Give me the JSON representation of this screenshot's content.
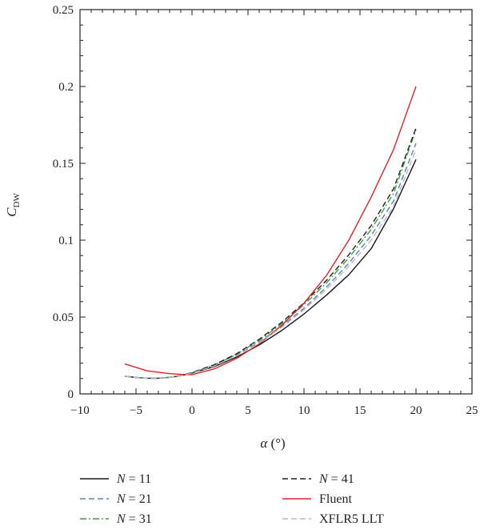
{
  "chart_data": {
    "type": "line",
    "xlabel_symbol": "α",
    "xlabel_unit": " (°)",
    "ylabel_main": "C",
    "ylabel_sub": "DW",
    "xlim": [
      -10,
      25
    ],
    "ylim": [
      0,
      0.25
    ],
    "xticks": [
      -10,
      -5,
      0,
      5,
      10,
      15,
      20,
      25
    ],
    "yticks": [
      0,
      0.05,
      0.1,
      0.15,
      0.2,
      0.25
    ],
    "ytick_labels": [
      "0",
      "0.05",
      "0.1",
      "0.15",
      "0.2",
      "0.25"
    ],
    "legend_placement": "bottom",
    "series": [
      {
        "name": "N = 11",
        "name_italic": "N",
        "name_rest": " = 11",
        "color": "#1a1a1a",
        "dash": "solid",
        "x": [
          -6,
          -5,
          -4,
          -3,
          -2,
          -1,
          0,
          2,
          4,
          6,
          8,
          10,
          12,
          14,
          16,
          18,
          20
        ],
        "y": [
          0.0115,
          0.0107,
          0.0102,
          0.0102,
          0.0108,
          0.0118,
          0.0135,
          0.0178,
          0.024,
          0.0318,
          0.0412,
          0.052,
          0.0642,
          0.0775,
          0.0945,
          0.1205,
          0.1525
        ]
      },
      {
        "name": "N = 21",
        "name_italic": "N",
        "name_rest": " = 21",
        "color": "#5b7fc4",
        "dash": "dashed",
        "x": [
          -6,
          -5,
          -4,
          -3,
          -2,
          -1,
          0,
          2,
          4,
          6,
          8,
          10,
          12,
          14,
          16,
          18,
          20
        ],
        "y": [
          0.0115,
          0.0107,
          0.0102,
          0.0102,
          0.0108,
          0.0119,
          0.0137,
          0.0185,
          0.0252,
          0.0338,
          0.044,
          0.0558,
          0.0695,
          0.085,
          0.103,
          0.1255,
          0.163
        ]
      },
      {
        "name": "N = 31",
        "name_italic": "N",
        "name_rest": " = 31",
        "color": "#3aa13a",
        "dash": "dashdot",
        "x": [
          -6,
          -5,
          -4,
          -3,
          -2,
          -1,
          0,
          2,
          4,
          6,
          8,
          10,
          12,
          14,
          16,
          18,
          20
        ],
        "y": [
          0.0115,
          0.0107,
          0.0102,
          0.0102,
          0.0108,
          0.012,
          0.0138,
          0.0188,
          0.0258,
          0.0348,
          0.0455,
          0.058,
          0.0722,
          0.0885,
          0.107,
          0.1305,
          0.172
        ]
      },
      {
        "name": "N = 41",
        "name_italic": "N",
        "name_rest": " = 41",
        "color": "#222222",
        "dash": "dashed",
        "x": [
          -6,
          -5,
          -4,
          -3,
          -2,
          -1,
          0,
          2,
          4,
          6,
          8,
          10,
          12,
          14,
          16,
          18,
          20
        ],
        "y": [
          0.0115,
          0.0107,
          0.0102,
          0.0102,
          0.0108,
          0.012,
          0.0139,
          0.019,
          0.0262,
          0.0355,
          0.0465,
          0.0592,
          0.0738,
          0.0905,
          0.1095,
          0.1335,
          0.173
        ]
      },
      {
        "name": "Fluent",
        "name_italic": "",
        "name_rest": "Fluent",
        "color": "#d9262c",
        "dash": "solid",
        "x": [
          -6,
          -4,
          -2,
          -1,
          0,
          2,
          4,
          6,
          8,
          10,
          12,
          14,
          16,
          18,
          20
        ],
        "y": [
          0.0195,
          0.015,
          0.0132,
          0.0127,
          0.0125,
          0.0163,
          0.0232,
          0.0325,
          0.0445,
          0.059,
          0.077,
          0.1,
          0.128,
          0.159,
          0.2
        ]
      },
      {
        "name": "XFLR5 LLT",
        "name_italic": "",
        "name_rest": "XFLR5 LLT",
        "color": "#b9b9c6",
        "dash": "dashed",
        "x": [
          -6,
          -5,
          -4,
          -3,
          -2,
          -1,
          0,
          2,
          4,
          6,
          8,
          10,
          12,
          14,
          16,
          18,
          20
        ],
        "y": [
          0.0115,
          0.0107,
          0.0102,
          0.0102,
          0.0108,
          0.0119,
          0.0136,
          0.0182,
          0.0248,
          0.0333,
          0.0433,
          0.0548,
          0.068,
          0.083,
          0.1,
          0.122,
          0.159
        ]
      }
    ]
  }
}
